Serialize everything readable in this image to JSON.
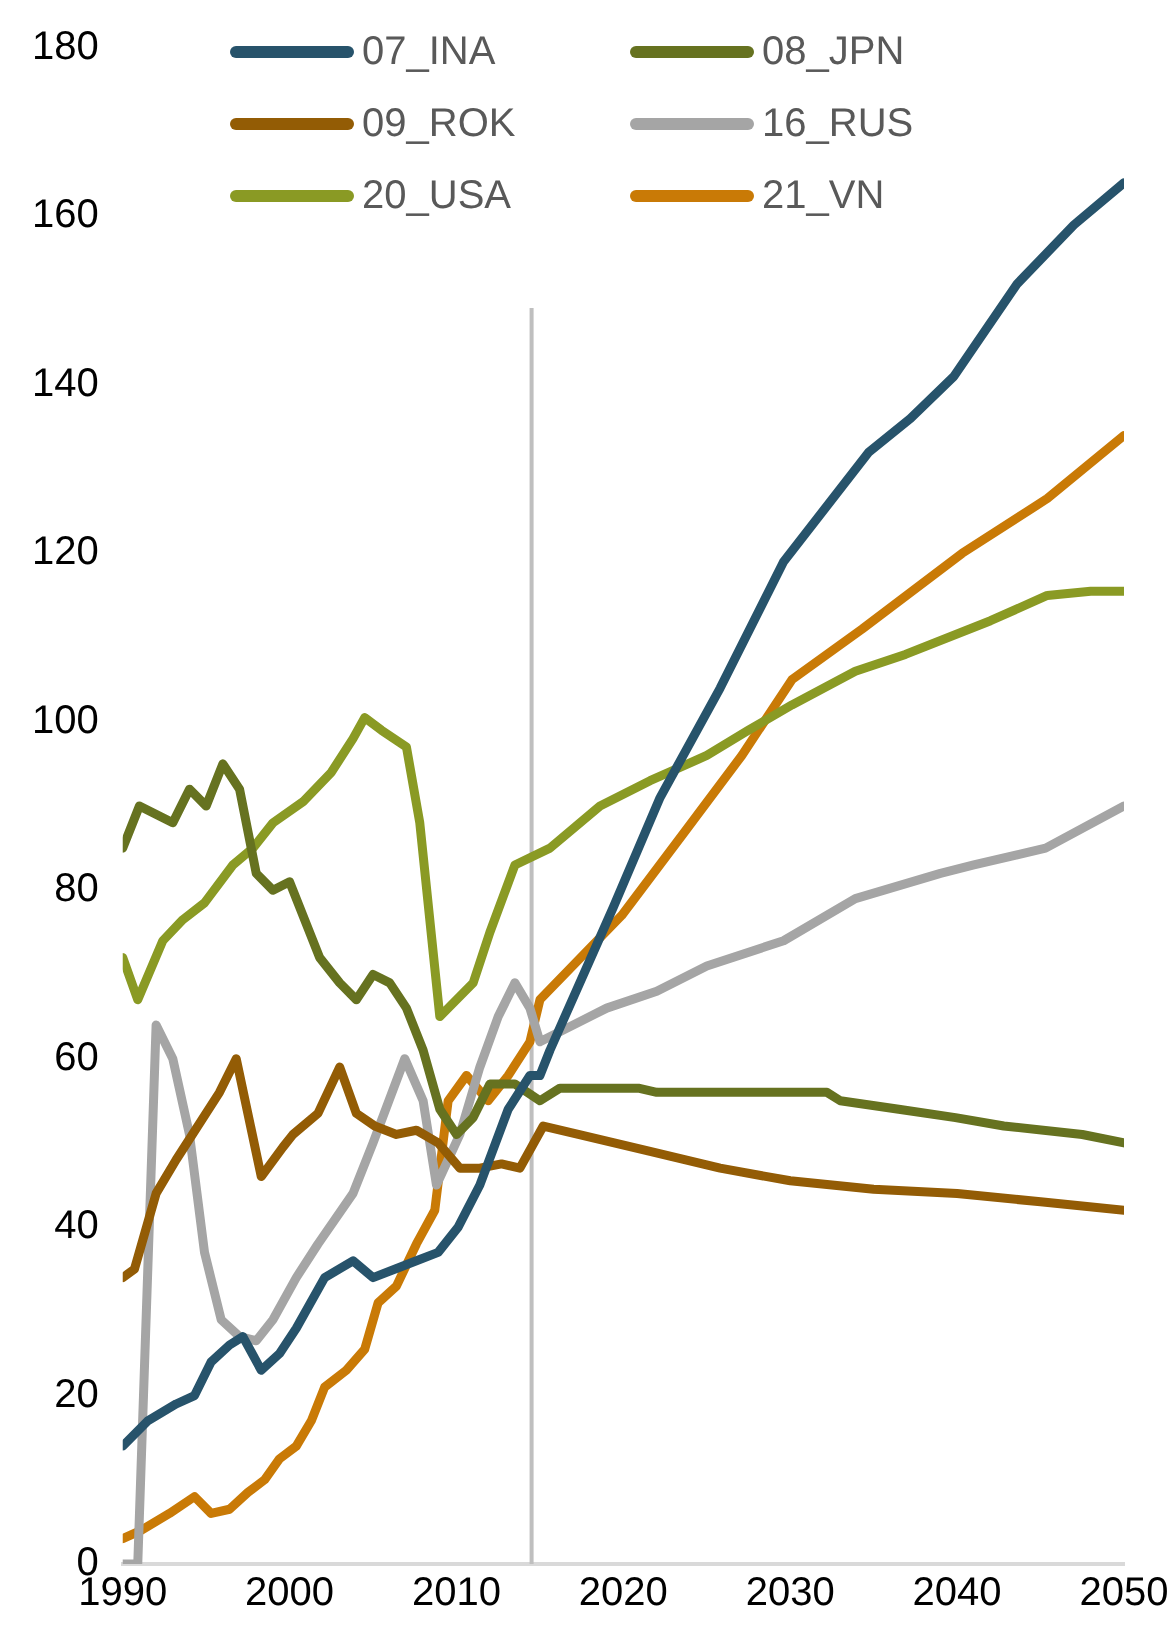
{
  "chart_data": {
    "type": "line",
    "xlim": [
      1990,
      2050
    ],
    "xticks": [
      1990,
      2000,
      2010,
      2020,
      2030,
      2040,
      2050
    ],
    "ylim": [
      0,
      180
    ],
    "yticks": [
      0,
      20,
      40,
      60,
      80,
      100,
      120,
      140,
      160,
      180
    ],
    "grid": false,
    "legend": "top",
    "marker": "none",
    "line_style": "solid",
    "ref_lines": [
      {
        "axis": "x",
        "value": 2014.5,
        "color": "#bfbfbf"
      }
    ],
    "series": [
      {
        "name": "07_INA",
        "color": "#27536b",
        "x": [
          1990,
          1991.5,
          1993.2,
          1994.3,
          1995.3,
          1996.4,
          1997.2,
          1998.3,
          1999.4,
          2000.4,
          2002.1,
          2003.8,
          2005,
          2007.6,
          2008.9,
          2010.1,
          2011.4,
          2013.1,
          2014.4,
          2015,
          2015.6,
          2019.4,
          2022.2,
          2025.8,
          2029.6,
          2034.7,
          2037.2,
          2039.8,
          2043.6,
          2047,
          2050
        ],
        "values": [
          14,
          17,
          19,
          20,
          24,
          26,
          27,
          23,
          25,
          28,
          34,
          36,
          34,
          36,
          37,
          40,
          45,
          54,
          58,
          58,
          61,
          78,
          91,
          104,
          119,
          132,
          136,
          141,
          152,
          159,
          164
        ]
      },
      {
        "name": "08_JPN",
        "color": "#667220",
        "x": [
          1990,
          1991,
          1993,
          1994,
          1995,
          1996,
          1997,
          1998,
          1999,
          2000,
          2001.8,
          2003,
          2004,
          2005,
          2006,
          2007,
          2008,
          2009,
          2010,
          2011,
          2012,
          2013.5,
          2015,
          2016.2,
          2020.9,
          2022,
          2032.2,
          2033,
          2036.5,
          2039.9,
          2042.8,
          2047.5,
          2050
        ],
        "values": [
          85,
          90,
          88,
          92,
          90,
          95,
          92,
          82,
          80,
          81,
          72,
          69,
          67,
          70,
          69,
          66,
          61,
          54,
          51,
          53,
          57,
          57,
          55,
          56.5,
          56.5,
          56,
          56,
          55,
          54,
          53,
          52,
          51,
          50
        ]
      },
      {
        "name": "09_ROK",
        "color": "#935c05",
        "x": [
          1990,
          1990.7,
          1992,
          1993.2,
          1995.8,
          1996.8,
          1998.3,
          1999.6,
          2000.2,
          2001.7,
          2003,
          2004,
          2005.1,
          2006.4,
          2007.6,
          2008.9,
          2010.2,
          2011.4,
          2012.7,
          2013.8,
          2015.2,
          2017.3,
          2021.6,
          2025.8,
          2030,
          2035,
          2040,
          2045,
          2050
        ],
        "values": [
          34,
          35,
          44,
          48,
          56,
          60,
          46,
          49.5,
          51,
          53.5,
          59,
          53.5,
          52,
          51,
          51.5,
          50,
          47,
          47,
          47.5,
          47,
          52,
          51,
          49,
          47,
          45.5,
          44.5,
          44,
          43,
          42
        ]
      },
      {
        "name": "16_RUS",
        "color": "#a5a5a5",
        "x": [
          1990,
          1990.9,
          1992,
          1993,
          1994,
          1994.9,
          1995.9,
          1997,
          1998,
          1999,
          2000.4,
          2001.7,
          2003.8,
          2005,
          2006.9,
          2008,
          2008.8,
          2010.2,
          2011.4,
          2012.5,
          2013.5,
          2014.4,
          2015,
          2019,
          2022,
          2025,
          2029.6,
          2033.9,
          2039,
          2041,
          2045.3,
          2050
        ],
        "values": [
          0,
          0,
          64,
          60,
          51,
          37,
          29,
          27,
          26.5,
          29,
          34,
          38,
          44,
          50,
          60,
          55,
          45,
          51,
          59,
          65,
          69,
          66,
          62,
          66,
          68,
          71,
          74,
          79,
          82,
          83,
          85,
          90
        ]
      },
      {
        "name": "20_USA",
        "color": "#8a9a24",
        "x": [
          1990,
          1990.9,
          1992.4,
          1993.6,
          1994.9,
          1996.6,
          1997.8,
          1999,
          2000.8,
          2002.5,
          2003.8,
          2004.5,
          2005.5,
          2007,
          2007.8,
          2009,
          2011,
          2012,
          2013.5,
          2015.6,
          2018.6,
          2021.6,
          2025,
          2027.5,
          2030.1,
          2033.9,
          2036.9,
          2042,
          2045.4,
          2048,
          2050
        ],
        "values": [
          72,
          67,
          74,
          76.5,
          78.5,
          83,
          85,
          88,
          90.5,
          94,
          98,
          100.5,
          99,
          97,
          88,
          65,
          69,
          75,
          83,
          85,
          90,
          93,
          96,
          99,
          102,
          106,
          108,
          112,
          115,
          115.5,
          115.5
        ]
      },
      {
        "name": "21_VN",
        "color": "#c97a06",
        "x": [
          1990,
          1991.1,
          1992.8,
          1994.3,
          1995.3,
          1996.4,
          1997.5,
          1998.5,
          1999.4,
          2000.4,
          2001.3,
          2002.1,
          2003.4,
          2004.5,
          2005.3,
          2006.4,
          2007.6,
          2008.7,
          2009.5,
          2010.6,
          2011.9,
          2013.1,
          2014.4,
          2015,
          2019.9,
          2023.7,
          2027.1,
          2030.1,
          2034.3,
          2040.3,
          2045.4,
          2050
        ],
        "values": [
          3,
          4,
          6,
          8,
          6,
          6.5,
          8.5,
          10,
          12.5,
          14,
          17,
          21,
          23,
          25.5,
          31,
          33,
          38,
          42,
          55,
          58,
          55,
          58,
          62,
          67,
          77,
          87,
          96,
          105,
          111,
          120,
          126.5,
          134
        ]
      }
    ]
  }
}
